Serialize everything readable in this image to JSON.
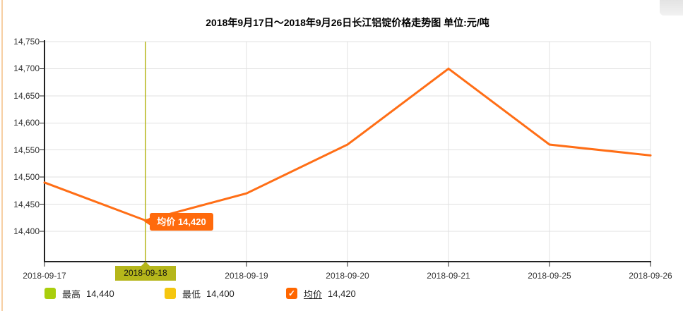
{
  "title": "2018年9月17日～2018年9月26日长江铝锭价格走势图 单位:元/吨",
  "chart_data": {
    "type": "line",
    "title": "2018年9月17日～2018年9月26日长江铝锭价格走势图",
    "unit_label": "单位:元/吨",
    "x_labels": [
      "2018-09-17",
      "2018-09-18",
      "2018-09-19",
      "2018-09-20",
      "2018-09-21",
      "2018-09-25",
      "2018-09-26"
    ],
    "selected_index": 1,
    "series": [
      {
        "name": "均价",
        "color": "#ff6e16",
        "values": [
          14490,
          14420,
          14470,
          14560,
          14700,
          14560,
          14540
        ]
      }
    ],
    "y_ticks": [
      14750,
      14700,
      14650,
      14600,
      14550,
      14500,
      14450,
      14400
    ],
    "y_tick_labels": [
      "14,750",
      "14,700",
      "14,650",
      "14,600",
      "14,550",
      "14,500",
      "14,450",
      "14,400"
    ],
    "ylim": [
      14344,
      14758
    ],
    "grid": true,
    "legend_position": "bottom"
  },
  "tooltip": {
    "label": "均价",
    "value": "14,420",
    "bg": "#ff6a0c"
  },
  "highlight": {
    "date": "2018-09-18",
    "color": "#b5b61a"
  },
  "legend": {
    "items": [
      {
        "label": "最高",
        "value": "14,440",
        "swatch_color": "#a9ce0d"
      },
      {
        "label": "最低",
        "value": "14,400",
        "swatch_color": "#f5c60f"
      },
      {
        "label": "均价",
        "value": "14,420",
        "swatch_color": "#ff6600",
        "check_glyph": "✓"
      }
    ]
  },
  "colors": {
    "line": "#ff6e16",
    "grid": "#e0e0e0",
    "axis": "#222222",
    "selected_line": "#b5b61a",
    "left_border": "#f7cfa3"
  }
}
